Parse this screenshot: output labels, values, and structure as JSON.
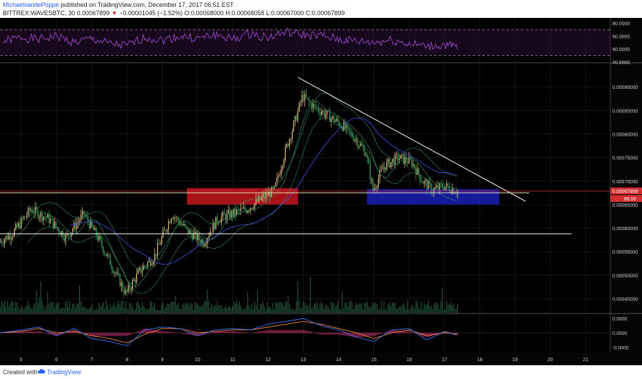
{
  "header": {
    "author": "MichaelvandePoppe",
    "published_text": "published on TradingView.com, December 17, 2017 06:51 EST",
    "symbol": "BITTREX:WAVESBTC, 30",
    "last_price": "0.00067899",
    "change": "−0.00001045 (−1.52%)",
    "ohlc": "O:0.00068000 H:0.00068058 L:0.00067000 C:0.00067899"
  },
  "footer": {
    "created_with": "Created with",
    "brand": "TradingView",
    "logo_icon": "tradingview-cloud-icon"
  },
  "colors": {
    "background": "#000000",
    "up": "#e8c88a",
    "down": "#3fae6a",
    "rsi_line": "#9c4dcc",
    "resistance_zone": "#c4161c",
    "support_zone": "#1a1fb5",
    "trendline": "#ffffff",
    "macd_line": "#3d7bff",
    "signal_line": "#ff8a3d",
    "histogram": "#e0307a",
    "price_tag": "#d32f2f"
  },
  "chart_data": [
    {
      "panel": "rsi",
      "type": "line",
      "ylim": [
        20,
        85
      ],
      "ticks": [
        "80.0000",
        "60.0000",
        "40.0000",
        "20.0000"
      ],
      "tick_values": [
        80,
        60,
        40,
        20
      ],
      "bands": [
        70,
        30
      ],
      "x": [
        4.5,
        5,
        5.5,
        6,
        6.5,
        7,
        7.5,
        8,
        8.5,
        9,
        9.5,
        10,
        10.5,
        11,
        11.5,
        12,
        12.5,
        13,
        13.5,
        14,
        14.5,
        15,
        15.5,
        16,
        16.5,
        17,
        17.4
      ],
      "values": [
        52,
        58,
        55,
        60,
        50,
        56,
        48,
        45,
        58,
        54,
        60,
        56,
        62,
        55,
        64,
        58,
        66,
        62,
        60,
        55,
        52,
        50,
        54,
        48,
        44,
        46,
        42
      ]
    },
    {
      "panel": "price",
      "type": "candlestick",
      "ylim": [
        0.00042,
        0.00095
      ],
      "ticks": [
        "0.00090000",
        "0.00085000",
        "0.00080000",
        "0.00075000",
        "0.00070000",
        "0.00065000",
        "0.00060000",
        "0.00055000",
        "0.00050000",
        "0.00045000"
      ],
      "tick_values": [
        0.0009,
        0.00085,
        0.0008,
        0.00075,
        0.0007,
        0.00065,
        0.0006,
        0.00055,
        0.0005,
        0.00045
      ],
      "x_ticks": [
        "5",
        "6",
        "7",
        "8",
        "9",
        "10",
        "11",
        "12",
        "13",
        "14",
        "15",
        "16",
        "17",
        "18",
        "19",
        "20",
        "21"
      ],
      "x_tick_values": [
        5,
        6,
        7,
        8,
        9,
        10,
        11,
        12,
        13,
        14,
        15,
        16,
        17,
        18,
        19,
        20,
        21
      ],
      "xlim": [
        4.4,
        21.7
      ],
      "path_x": [
        4.4,
        4.8,
        5.3,
        5.8,
        6.3,
        6.8,
        7.2,
        7.6,
        8.0,
        8.4,
        8.8,
        9.3,
        9.8,
        10.2,
        10.6,
        11.0,
        11.4,
        11.8,
        12.2,
        12.5,
        12.8,
        13.0,
        13.3,
        13.7,
        14.1,
        14.5,
        14.8,
        15.0,
        15.3,
        15.7,
        16.1,
        16.4,
        16.7,
        17.0,
        17.4
      ],
      "path_close": [
        0.00057,
        0.00059,
        0.00064,
        0.00062,
        0.00058,
        0.00063,
        0.00058,
        0.00052,
        0.00046,
        0.00051,
        0.00054,
        0.00063,
        0.00059,
        0.00057,
        0.00062,
        0.00063,
        0.00064,
        0.00066,
        0.00068,
        0.00076,
        0.00083,
        0.00088,
        0.00086,
        0.00084,
        0.00082,
        0.00079,
        0.00076,
        0.00068,
        0.00073,
        0.00075,
        0.00074,
        0.0007,
        0.00068,
        0.00069,
        0.00067899
      ],
      "price_tags": [
        "0.00067899",
        "89.00"
      ],
      "zones": [
        {
          "name": "resistance",
          "x0": 9.7,
          "x1": 12.85,
          "y0": 0.00065,
          "y1": 0.000685
        },
        {
          "name": "support",
          "x0": 14.8,
          "x1": 18.55,
          "y0": 0.00065,
          "y1": 0.000683
        }
      ],
      "lines": [
        {
          "name": "descending-trendline",
          "x0": 12.85,
          "y0": 0.00092,
          "x1": 19.3,
          "y1": 0.000657
        },
        {
          "name": "upper-horizontal",
          "x0": 4.4,
          "y0": 0.000675,
          "x1": 19.4,
          "y1": 0.000675
        },
        {
          "name": "lower-horizontal",
          "x0": 4.4,
          "y0": 0.000588,
          "x1": 20.6,
          "y1": 0.000588
        },
        {
          "name": "current-price-line",
          "x0": 4.4,
          "y0": 0.00067899,
          "x1": 21.7,
          "y1": 0.00067899
        }
      ]
    },
    {
      "panel": "macd",
      "type": "line",
      "ylim": [
        -1.3,
        1.3
      ],
      "ticks": [
        "0.0000",
        "0.0000",
        "-0.0000"
      ],
      "tick_values": [
        1,
        0,
        -1
      ],
      "x": [
        4.4,
        5,
        5.5,
        6,
        6.5,
        7,
        7.5,
        8,
        8.5,
        9,
        9.5,
        10,
        10.5,
        11,
        11.5,
        12,
        12.5,
        13,
        13.5,
        14,
        14.5,
        15,
        15.5,
        16,
        16.5,
        17,
        17.4
      ],
      "macd": [
        0,
        0.2,
        0.4,
        -0.2,
        0.3,
        -0.4,
        -0.6,
        -0.9,
        0.2,
        0.4,
        0.3,
        -0.2,
        0.2,
        0.3,
        0.2,
        0.6,
        0.8,
        1.0,
        0.5,
        0.2,
        -0.3,
        -0.6,
        0.2,
        0.3,
        -0.5,
        0.1,
        -0.2
      ],
      "signal": [
        0,
        0.1,
        0.3,
        0,
        0.1,
        -0.2,
        -0.4,
        -0.7,
        -0.1,
        0.3,
        0.3,
        0,
        0.1,
        0.2,
        0.2,
        0.4,
        0.6,
        0.8,
        0.6,
        0.3,
        0,
        -0.4,
        0,
        0.2,
        -0.2,
        0,
        -0.1
      ]
    }
  ]
}
